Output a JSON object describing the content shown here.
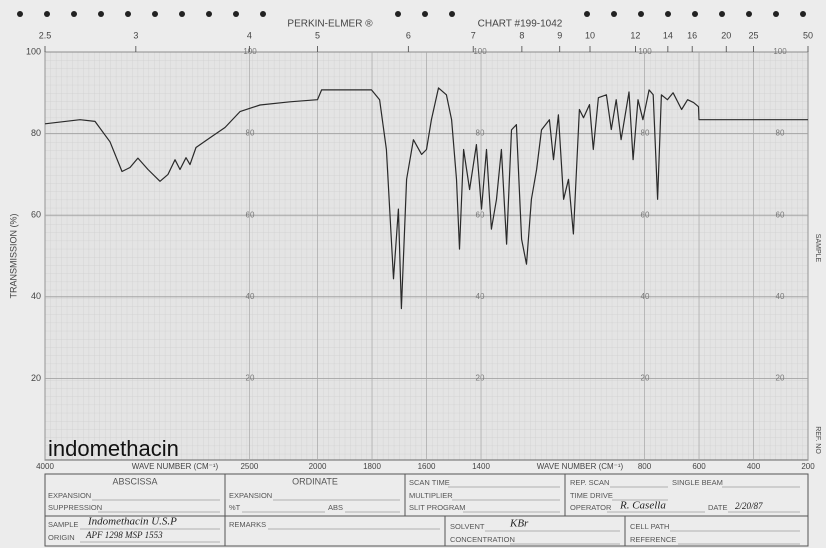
{
  "chart_data": {
    "type": "line",
    "header": "PERKIN-ELMER ®",
    "chart_number": "CHART #199-1042",
    "ylabel": "TRANSMISSION (%)",
    "xlabel": "WAVE NUMBER (CM⁻¹)",
    "xlim": [
      4000,
      200
    ],
    "xbreak": 2000,
    "xticks": [
      4000,
      2500,
      2000,
      1800,
      1600,
      1400,
      800,
      600,
      400,
      200
    ],
    "x2ticks": [
      2.5,
      3,
      4,
      5,
      6,
      7,
      8,
      9,
      10,
      12,
      14,
      16,
      20,
      25,
      50
    ],
    "ylim": [
      0,
      100
    ],
    "yticks": [
      20,
      40,
      60,
      80,
      100
    ],
    "grid": true,
    "color": "#2a2a2a",
    "x": [
      4000,
      3743,
      3633,
      3523,
      3435,
      3376,
      3318,
      3244,
      3156,
      3097,
      3046,
      3009,
      2965,
      2936,
      2892,
      2789,
      2679,
      2569,
      2422,
      2202,
      2000,
      1985,
      1802,
      1772,
      1747,
      1721,
      1703,
      1692,
      1673,
      1648,
      1618,
      1600,
      1582,
      1556,
      1527,
      1508,
      1490,
      1479,
      1464,
      1442,
      1417,
      1398,
      1380,
      1362,
      1343,
      1325,
      1306,
      1288,
      1270,
      1251,
      1233,
      1215,
      1196,
      1178,
      1149,
      1134,
      1116,
      1097,
      1079,
      1061,
      1039,
      1024,
      1002,
      988,
      969,
      940,
      922,
      904,
      886,
      857,
      842,
      824,
      806,
      783,
      768,
      752,
      738,
      716,
      695,
      664,
      642,
      620,
      602,
      600,
      200
    ],
    "values": [
      82.4,
      83.4,
      83.0,
      78.0,
      70.7,
      71.7,
      74.0,
      71.2,
      68.3,
      70.0,
      73.6,
      71.2,
      74.1,
      72.4,
      76.6,
      79.0,
      81.5,
      85.4,
      87.0,
      87.8,
      88.3,
      90.7,
      90.7,
      88.3,
      76.1,
      44.4,
      61.5,
      37.1,
      68.8,
      78.5,
      74.9,
      76.1,
      83.4,
      91.2,
      89.5,
      83.4,
      68.8,
      51.7,
      76.1,
      66.3,
      77.3,
      61.5,
      76.1,
      56.6,
      63.9,
      76.1,
      52.9,
      80.9,
      82.2,
      54.1,
      48.0,
      63.9,
      71.2,
      80.9,
      83.4,
      73.6,
      84.6,
      63.9,
      68.8,
      55.4,
      85.9,
      83.9,
      87.1,
      76.1,
      88.8,
      89.5,
      81.0,
      88.3,
      78.5,
      90.2,
      73.6,
      88.3,
      83.4,
      90.7,
      89.5,
      63.9,
      89.5,
      88.3,
      90.0,
      85.9,
      88.3,
      87.6,
      86.6,
      83.4,
      83.4
    ]
  },
  "annotation": "indomethacin",
  "side_labels": {
    "sample": "SAMPLE",
    "ref_no": "REF. NO"
  },
  "form": {
    "abscissa": "ABSCISSA",
    "expansion_1": "EXPANSION",
    "suppression": "SUPPRESSION",
    "ordinate": "ORDINATE",
    "expansion_2": "EXPANSION",
    "pct_t": "%T",
    "abs": "ABS",
    "scan_time": "SCAN TIME",
    "multiplier": "MULTIPLIER",
    "slit_program": "SLIT PROGRAM",
    "rep_scan": "REP. SCAN",
    "single_beam": "SINGLE BEAM",
    "time_drive": "TIME DRIVE",
    "operator": "OPERATOR",
    "operator_value": "R. Casella",
    "date": "DATE",
    "date_value": "2/20/87",
    "sample": "SAMPLE",
    "sample_value": "Indomethacin U.S.P",
    "origin": "ORIGIN",
    "origin_value": "APF 1298 MSP 1553",
    "remarks": "REMARKS",
    "solvent": "SOLVENT",
    "solvent_value": "KBr",
    "concentration": "CONCENTRATION",
    "cell_path": "CELL PATH",
    "reference": "REFERENCE"
  }
}
